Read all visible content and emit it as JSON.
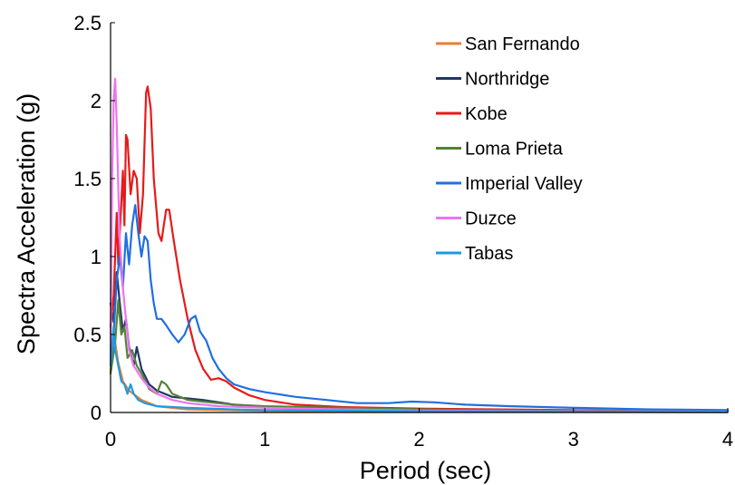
{
  "chart_data": {
    "type": "line",
    "title": "",
    "xlabel": "Period (sec)",
    "ylabel": "Spectra Acceleration (g)",
    "xlim": [
      0,
      4
    ],
    "ylim": [
      0,
      2.5
    ],
    "x_ticks": [
      "0",
      "1",
      "2",
      "3",
      "4"
    ],
    "y_ticks": [
      "0",
      "0.5",
      "1",
      "1.5",
      "2",
      "2.5"
    ],
    "grid": false,
    "legend_position": "top-right",
    "series": [
      {
        "name": "San Fernando",
        "color": "#ED7D31",
        "points": [
          [
            0,
            0.27
          ],
          [
            0.03,
            0.45
          ],
          [
            0.05,
            0.32
          ],
          [
            0.08,
            0.2
          ],
          [
            0.12,
            0.14
          ],
          [
            0.2,
            0.08
          ],
          [
            0.3,
            0.04
          ],
          [
            0.5,
            0.02
          ],
          [
            1,
            0.01
          ],
          [
            2,
            0.005
          ],
          [
            4,
            0.002
          ]
        ]
      },
      {
        "name": "Northridge",
        "color": "#203864",
        "points": [
          [
            0,
            0.7
          ],
          [
            0.02,
            0.58
          ],
          [
            0.04,
            0.9
          ],
          [
            0.06,
            0.7
          ],
          [
            0.08,
            0.52
          ],
          [
            0.1,
            0.6
          ],
          [
            0.12,
            0.42
          ],
          [
            0.15,
            0.3
          ],
          [
            0.17,
            0.42
          ],
          [
            0.2,
            0.28
          ],
          [
            0.25,
            0.18
          ],
          [
            0.3,
            0.14
          ],
          [
            0.4,
            0.1
          ],
          [
            0.5,
            0.09
          ],
          [
            0.6,
            0.08
          ],
          [
            0.8,
            0.05
          ],
          [
            1,
            0.035
          ],
          [
            1.5,
            0.02
          ],
          [
            2,
            0.015
          ],
          [
            3,
            0.008
          ],
          [
            4,
            0.005
          ]
        ]
      },
      {
        "name": "Kobe",
        "color": "#E61A1A",
        "points": [
          [
            0,
            0.55
          ],
          [
            0.02,
            0.75
          ],
          [
            0.04,
            1.28
          ],
          [
            0.05,
            0.95
          ],
          [
            0.06,
            1.15
          ],
          [
            0.08,
            1.55
          ],
          [
            0.09,
            1.2
          ],
          [
            0.1,
            1.78
          ],
          [
            0.11,
            1.75
          ],
          [
            0.13,
            1.4
          ],
          [
            0.15,
            1.55
          ],
          [
            0.17,
            1.5
          ],
          [
            0.19,
            1.15
          ],
          [
            0.21,
            1.4
          ],
          [
            0.23,
            2.05
          ],
          [
            0.24,
            2.09
          ],
          [
            0.26,
            1.95
          ],
          [
            0.28,
            1.5
          ],
          [
            0.31,
            1.15
          ],
          [
            0.33,
            1.1
          ],
          [
            0.36,
            1.3
          ],
          [
            0.38,
            1.3
          ],
          [
            0.41,
            1.1
          ],
          [
            0.45,
            0.85
          ],
          [
            0.5,
            0.6
          ],
          [
            0.55,
            0.4
          ],
          [
            0.6,
            0.28
          ],
          [
            0.65,
            0.21
          ],
          [
            0.7,
            0.22
          ],
          [
            0.75,
            0.2
          ],
          [
            0.8,
            0.16
          ],
          [
            0.9,
            0.11
          ],
          [
            1,
            0.08
          ],
          [
            1.2,
            0.05
          ],
          [
            1.5,
            0.035
          ],
          [
            2,
            0.025
          ],
          [
            2.5,
            0.02
          ],
          [
            3,
            0.015
          ],
          [
            3.5,
            0.01
          ],
          [
            4,
            0.008
          ]
        ]
      },
      {
        "name": "Loma Prieta",
        "color": "#548235",
        "points": [
          [
            0,
            0.25
          ],
          [
            0.03,
            0.45
          ],
          [
            0.05,
            0.72
          ],
          [
            0.07,
            0.5
          ],
          [
            0.09,
            0.55
          ],
          [
            0.11,
            0.35
          ],
          [
            0.14,
            0.4
          ],
          [
            0.17,
            0.3
          ],
          [
            0.2,
            0.25
          ],
          [
            0.25,
            0.15
          ],
          [
            0.3,
            0.12
          ],
          [
            0.33,
            0.2
          ],
          [
            0.36,
            0.18
          ],
          [
            0.4,
            0.12
          ],
          [
            0.5,
            0.08
          ],
          [
            0.6,
            0.07
          ],
          [
            0.8,
            0.05
          ],
          [
            1,
            0.04
          ],
          [
            1.5,
            0.03
          ],
          [
            2,
            0.02
          ],
          [
            3,
            0.01
          ],
          [
            4,
            0.008
          ]
        ]
      },
      {
        "name": "Imperial Valley",
        "color": "#1F6FE0",
        "points": [
          [
            0,
            0.3
          ],
          [
            0.02,
            0.5
          ],
          [
            0.04,
            0.85
          ],
          [
            0.06,
            1.0
          ],
          [
            0.08,
            0.8
          ],
          [
            0.1,
            1.15
          ],
          [
            0.12,
            0.95
          ],
          [
            0.14,
            1.2
          ],
          [
            0.16,
            1.33
          ],
          [
            0.18,
            1.15
          ],
          [
            0.2,
            1.0
          ],
          [
            0.22,
            1.13
          ],
          [
            0.24,
            1.1
          ],
          [
            0.26,
            0.85
          ],
          [
            0.28,
            0.7
          ],
          [
            0.3,
            0.6
          ],
          [
            0.33,
            0.6
          ],
          [
            0.36,
            0.56
          ],
          [
            0.4,
            0.5
          ],
          [
            0.44,
            0.45
          ],
          [
            0.48,
            0.5
          ],
          [
            0.52,
            0.6
          ],
          [
            0.55,
            0.62
          ],
          [
            0.58,
            0.52
          ],
          [
            0.62,
            0.46
          ],
          [
            0.66,
            0.35
          ],
          [
            0.7,
            0.28
          ],
          [
            0.75,
            0.22
          ],
          [
            0.8,
            0.18
          ],
          [
            0.9,
            0.15
          ],
          [
            1,
            0.13
          ],
          [
            1.2,
            0.1
          ],
          [
            1.4,
            0.08
          ],
          [
            1.6,
            0.06
          ],
          [
            1.8,
            0.06
          ],
          [
            1.95,
            0.07
          ],
          [
            2.1,
            0.065
          ],
          [
            2.3,
            0.05
          ],
          [
            2.6,
            0.04
          ],
          [
            3,
            0.03
          ],
          [
            3.5,
            0.02
          ],
          [
            4,
            0.015
          ]
        ]
      },
      {
        "name": "Duzce",
        "color": "#F072F0",
        "points": [
          [
            0,
            0.32
          ],
          [
            0.01,
            1.5
          ],
          [
            0.02,
            2.0
          ],
          [
            0.03,
            2.14
          ],
          [
            0.04,
            1.85
          ],
          [
            0.05,
            1.45
          ],
          [
            0.06,
            1.1
          ],
          [
            0.08,
            0.8
          ],
          [
            0.1,
            0.6
          ],
          [
            0.12,
            0.4
          ],
          [
            0.15,
            0.3
          ],
          [
            0.2,
            0.22
          ],
          [
            0.25,
            0.16
          ],
          [
            0.3,
            0.12
          ],
          [
            0.4,
            0.08
          ],
          [
            0.5,
            0.06
          ],
          [
            0.7,
            0.04
          ],
          [
            1,
            0.03
          ],
          [
            1.5,
            0.02
          ],
          [
            2,
            0.012
          ],
          [
            3,
            0.008
          ],
          [
            4,
            0.005
          ]
        ]
      },
      {
        "name": "Tabas",
        "color": "#1E9BE0",
        "points": [
          [
            0,
            0.3
          ],
          [
            0.02,
            0.55
          ],
          [
            0.03,
            0.4
          ],
          [
            0.05,
            0.3
          ],
          [
            0.07,
            0.2
          ],
          [
            0.09,
            0.18
          ],
          [
            0.11,
            0.12
          ],
          [
            0.13,
            0.18
          ],
          [
            0.15,
            0.12
          ],
          [
            0.18,
            0.08
          ],
          [
            0.22,
            0.06
          ],
          [
            0.3,
            0.04
          ],
          [
            0.5,
            0.03
          ],
          [
            0.8,
            0.02
          ],
          [
            1,
            0.015
          ],
          [
            2,
            0.008
          ],
          [
            3,
            0.005
          ],
          [
            4,
            0.003
          ]
        ]
      }
    ]
  }
}
